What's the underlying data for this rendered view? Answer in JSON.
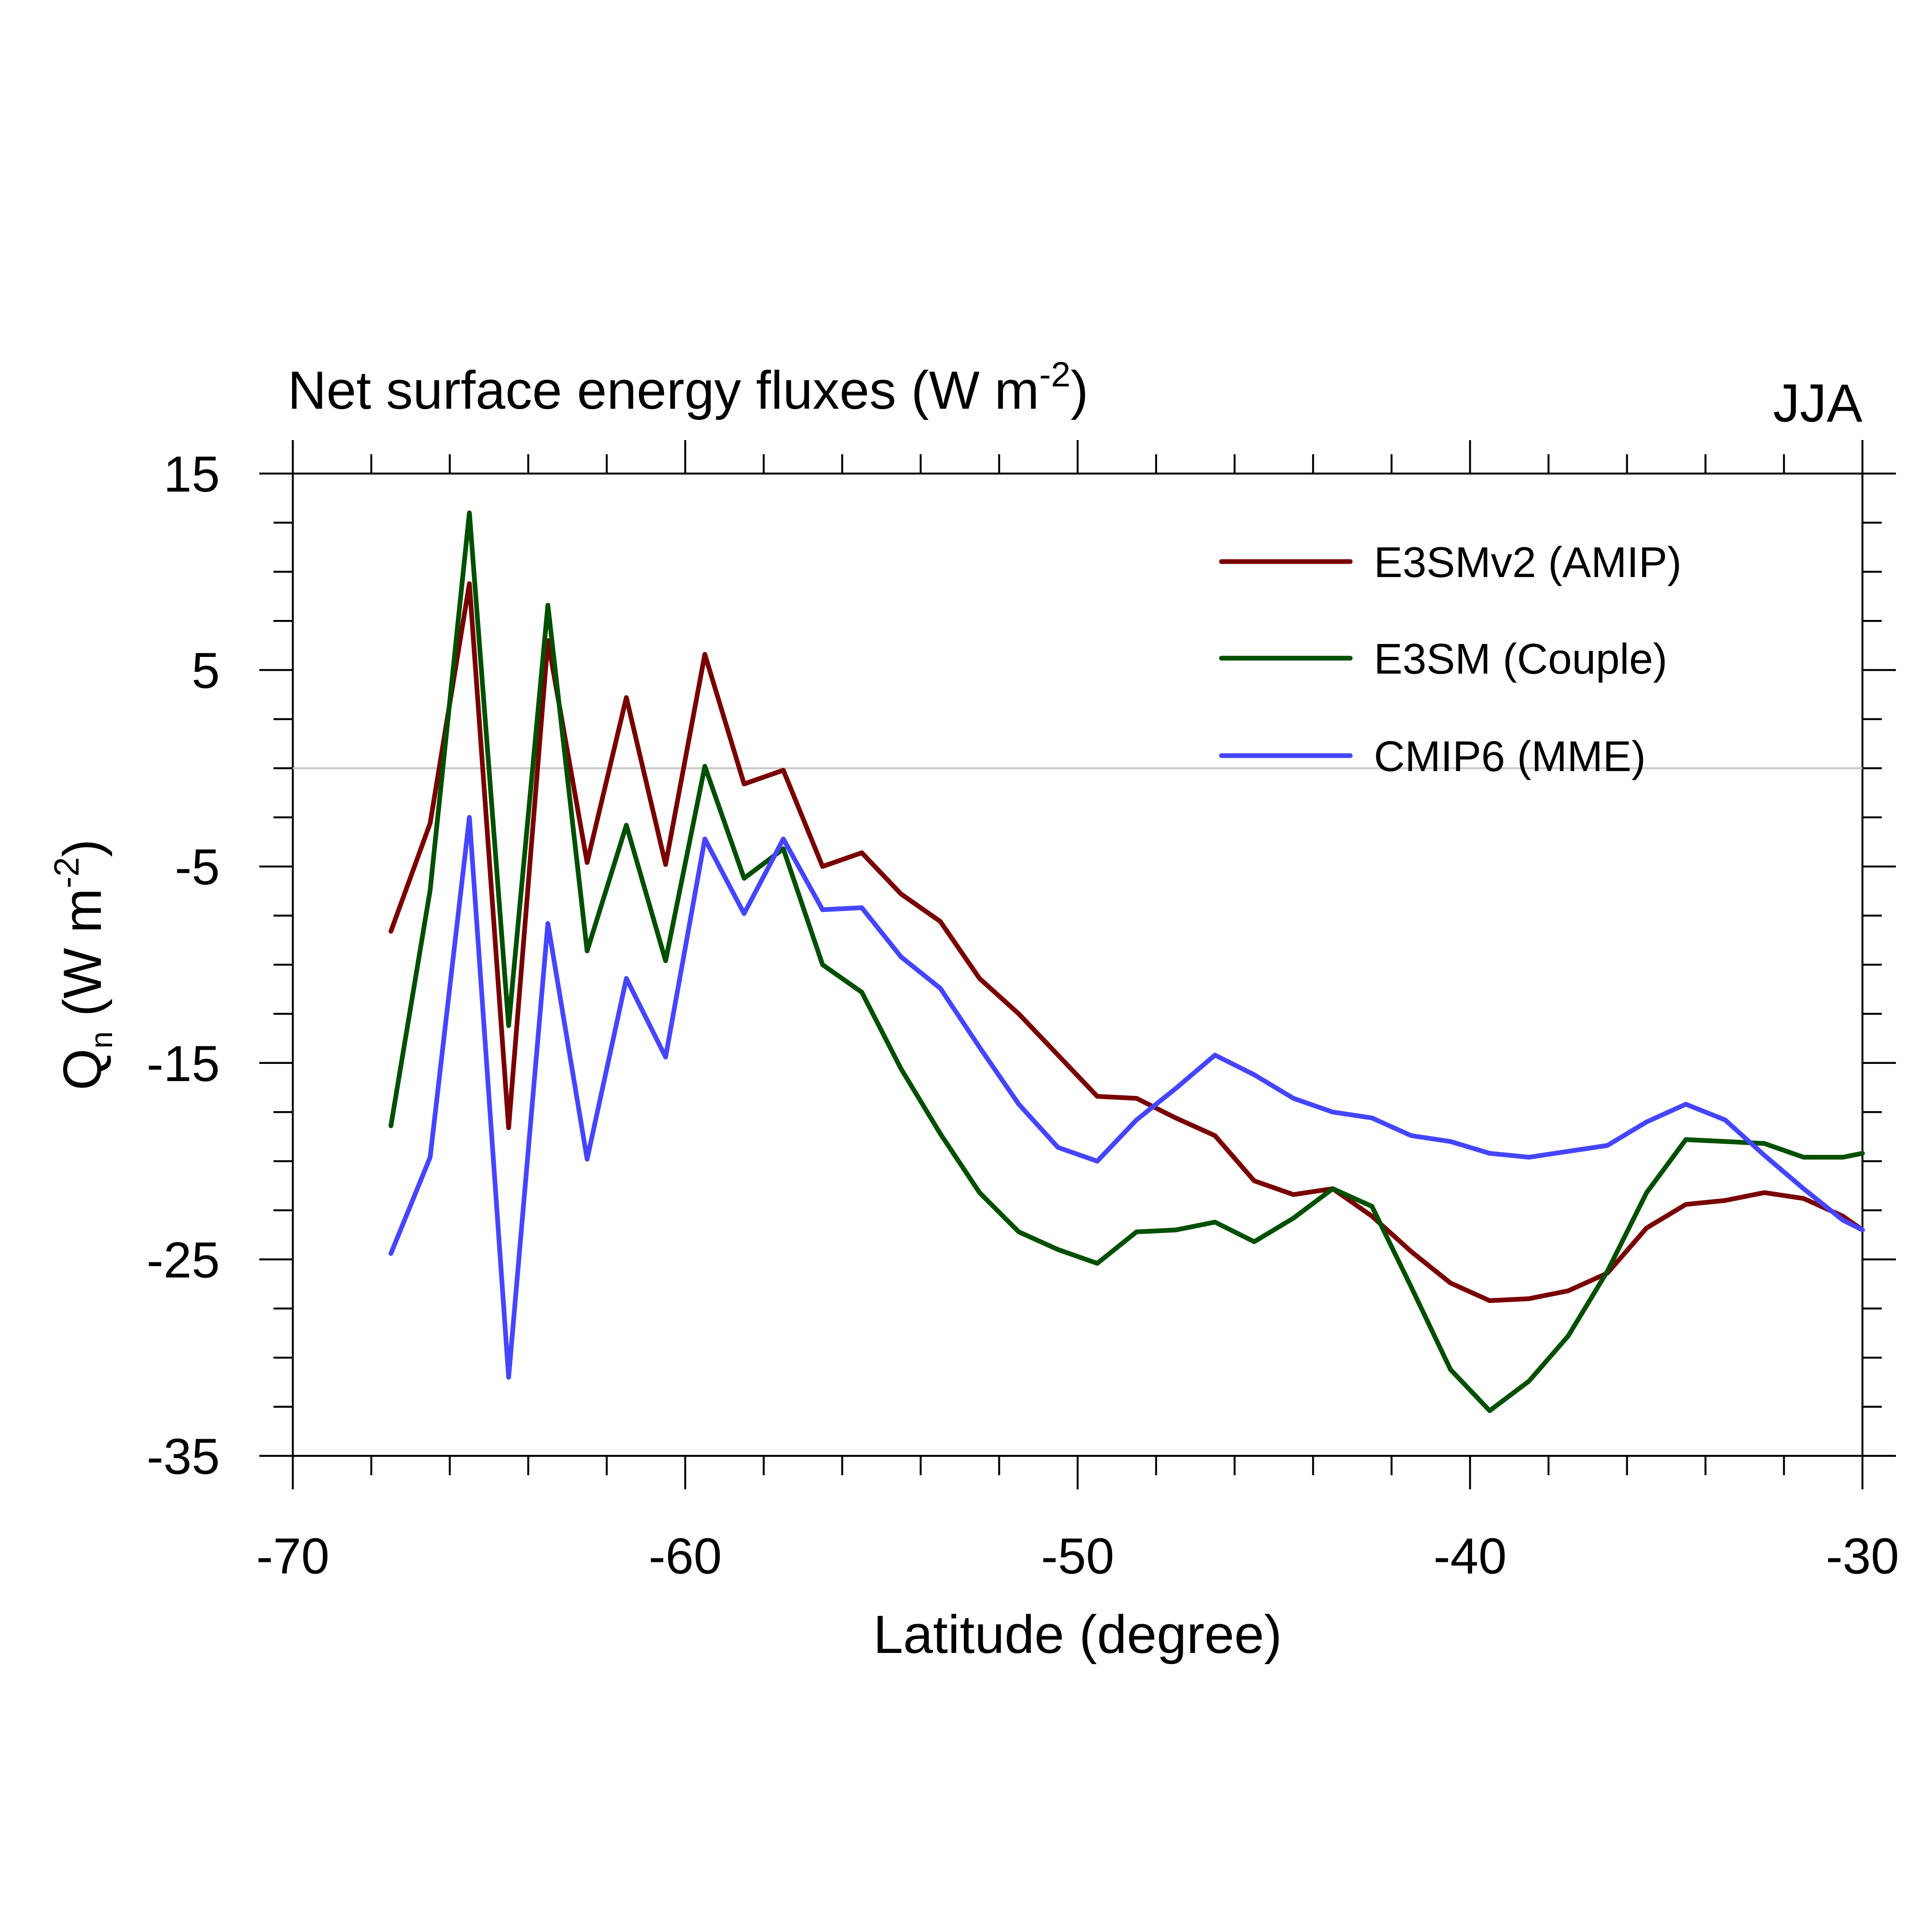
{
  "chart_data": {
    "type": "line",
    "title": "Net surface energy fluxes (W m",
    "title_superscript": "-2",
    "title_suffix": ")",
    "season_label": "JJA",
    "xlabel": "Latitude (degree)",
    "ylabel_main": "Q",
    "ylabel_subscript": "n",
    "ylabel_units": " (W m",
    "ylabel_superscript": "-2",
    "ylabel_suffix": ")",
    "xlim": [
      -70,
      -30
    ],
    "ylim": [
      -35,
      15
    ],
    "xticks": [
      -70,
      -60,
      -50,
      -40,
      -30
    ],
    "yticks": [
      15,
      5,
      -5,
      -15,
      -25,
      -35
    ],
    "zero_line": 0,
    "x": [
      -67.5,
      -66.5,
      -65.5,
      -64.5,
      -63.5,
      -62.5,
      -61.5,
      -60.5,
      -59.5,
      -58.5,
      -57.5,
      -56.5,
      -55.5,
      -54.5,
      -53.5,
      -52.5,
      -51.5,
      -50.5,
      -49.5,
      -48.5,
      -47.5,
      -46.5,
      -45.5,
      -44.5,
      -43.5,
      -42.5,
      -41.5,
      -40.5,
      -39.5,
      -38.5,
      -37.5,
      -36.5,
      -35.5,
      -34.5,
      -33.5,
      -32.5,
      -31.5,
      -30.5,
      -30
    ],
    "series": [
      {
        "name": "E3SMv2 (AMIP)",
        "color": "#7a0000",
        "values": [
          -8.3,
          -2.8,
          9.4,
          -18.3,
          6.5,
          -4.8,
          3.6,
          -4.9,
          5.8,
          -0.8,
          -0.1,
          -5.0,
          -4.3,
          -6.4,
          -7.8,
          -10.7,
          -12.5,
          -14.6,
          -16.7,
          -16.8,
          -17.8,
          -18.7,
          -21.0,
          -21.7,
          -21.4,
          -22.8,
          -24.6,
          -26.2,
          -27.1,
          -27.0,
          -26.6,
          -25.7,
          -23.4,
          -22.2,
          -22.0,
          -21.6,
          -21.9,
          -22.8,
          -23.5
        ]
      },
      {
        "name": "E3SM (Couple)",
        "color": "#005000",
        "values": [
          -18.2,
          -6.2,
          13.0,
          -13.1,
          8.3,
          -9.3,
          -2.9,
          -9.8,
          0.1,
          -5.6,
          -4.1,
          -10.0,
          -11.4,
          -15.3,
          -18.6,
          -21.6,
          -23.6,
          -24.5,
          -25.2,
          -23.6,
          -23.5,
          -23.1,
          -24.1,
          -22.9,
          -21.4,
          -22.3,
          -26.4,
          -30.6,
          -32.7,
          -31.2,
          -28.9,
          -25.6,
          -21.6,
          -18.9,
          -19.0,
          -19.1,
          -19.8,
          -19.8,
          -19.6
        ]
      },
      {
        "name": "CMIP6 (MME)",
        "color": "#4545ff",
        "values": [
          -24.7,
          -19.8,
          -2.5,
          -31.0,
          -7.9,
          -19.9,
          -10.7,
          -14.7,
          -3.6,
          -7.4,
          -3.6,
          -7.2,
          -7.1,
          -9.6,
          -11.2,
          -14.2,
          -17.1,
          -19.3,
          -20.0,
          -17.9,
          -16.3,
          -14.6,
          -15.6,
          -16.8,
          -17.5,
          -17.8,
          -18.7,
          -19.0,
          -19.6,
          -19.8,
          -19.5,
          -19.2,
          -18.0,
          -17.1,
          -17.9,
          -19.7,
          -21.4,
          -23.0,
          -23.5
        ]
      }
    ],
    "legend_position": "top-right"
  }
}
